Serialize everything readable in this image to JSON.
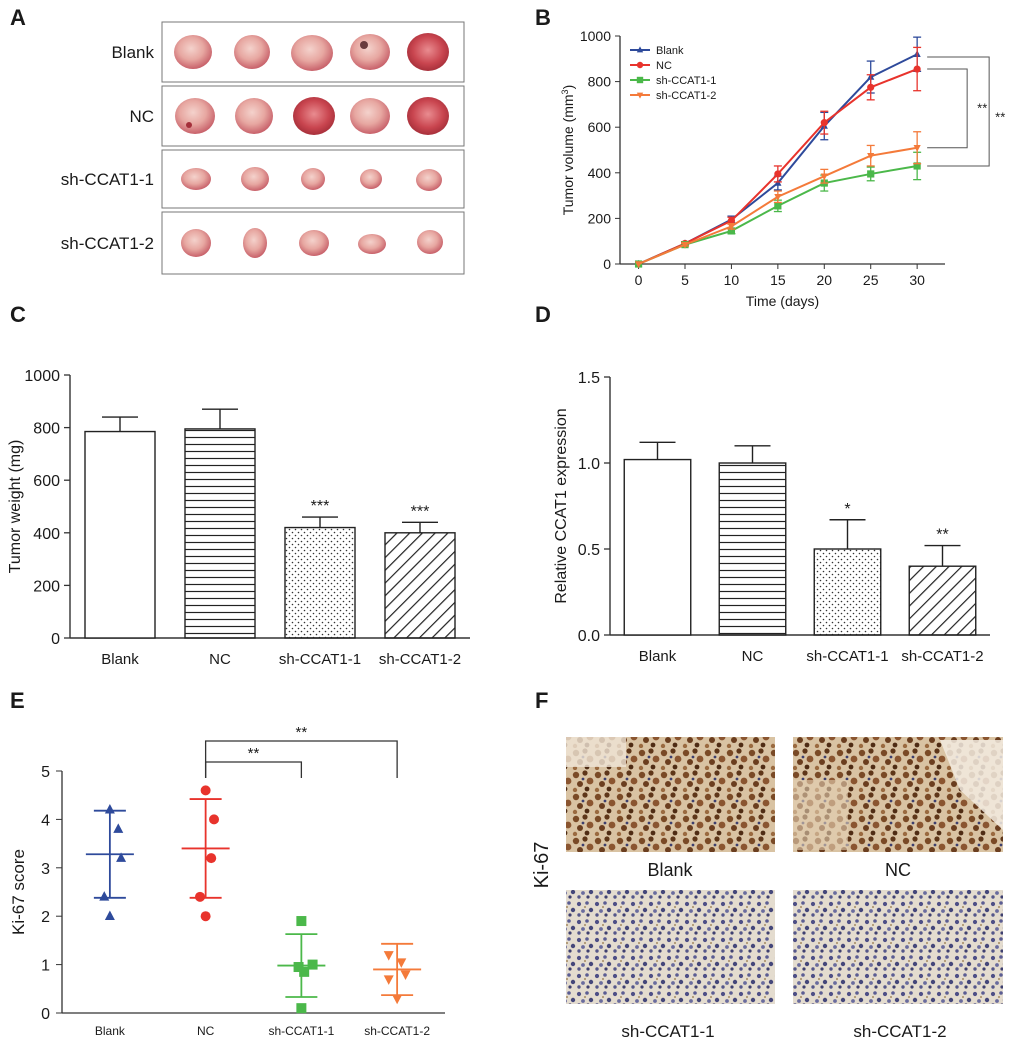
{
  "panels": {
    "A": {
      "letter": "A",
      "rows": [
        "Blank",
        "NC",
        "sh-CCAT1-1",
        "sh-CCAT1-2"
      ]
    },
    "F": {
      "letter": "F",
      "stain": "Ki-67",
      "captions": [
        "Blank",
        "NC",
        "sh-CCAT1-1",
        "sh-CCAT1-2"
      ]
    }
  },
  "chart_data": [
    {
      "id": "B",
      "letter": "B",
      "type": "line",
      "xlabel": "Time (days)",
      "ylabel": "Tumor volume (mm",
      "ylabel_sup": "3",
      "ylabel_close": ")",
      "x": [
        0,
        5,
        10,
        15,
        20,
        25,
        30
      ],
      "xlim": [
        -2,
        33
      ],
      "ylim": [
        0,
        1000
      ],
      "xticks": [
        "0",
        "5",
        "10",
        "15",
        "20",
        "25",
        "30"
      ],
      "yticks": [
        "0",
        "200",
        "400",
        "600",
        "800",
        "1000"
      ],
      "legend_position": "top-left",
      "series": [
        {
          "name": "Blank",
          "color": "#2e4a9b",
          "marker": "triangle-up",
          "values": [
            0,
            90,
            195,
            355,
            605,
            820,
            920
          ],
          "errors": [
            0,
            8,
            15,
            30,
            60,
            70,
            75
          ]
        },
        {
          "name": "NC",
          "color": "#e8332c",
          "marker": "circle",
          "values": [
            0,
            90,
            190,
            395,
            620,
            775,
            855
          ],
          "errors": [
            0,
            8,
            15,
            35,
            50,
            55,
            95
          ]
        },
        {
          "name": "sh-CCAT1-1",
          "color": "#4bb84a",
          "marker": "square",
          "values": [
            0,
            85,
            145,
            255,
            355,
            395,
            430
          ],
          "errors": [
            0,
            6,
            12,
            25,
            35,
            30,
            60
          ]
        },
        {
          "name": "sh-CCAT1-2",
          "color": "#f47a3a",
          "marker": "triangle-down",
          "values": [
            0,
            85,
            165,
            295,
            385,
            475,
            510
          ],
          "errors": [
            0,
            6,
            12,
            25,
            30,
            45,
            70
          ]
        }
      ],
      "annotations": [
        "**",
        "**"
      ]
    },
    {
      "id": "C",
      "letter": "C",
      "type": "bar",
      "ylabel": "Tumor weight (mg)",
      "categories": [
        "Blank",
        "NC",
        "sh-CCAT1-1",
        "sh-CCAT1-2"
      ],
      "values": [
        785,
        795,
        420,
        400
      ],
      "errors": [
        55,
        75,
        40,
        40
      ],
      "significance": [
        "",
        "",
        "***",
        "***"
      ],
      "ylim": [
        0,
        1000
      ],
      "yticks": [
        "0",
        "200",
        "400",
        "600",
        "800",
        "1000"
      ],
      "patterns": [
        "none",
        "hlines",
        "dots",
        "diag"
      ]
    },
    {
      "id": "D",
      "letter": "D",
      "type": "bar",
      "ylabel": "Relative CCAT1 expression",
      "categories": [
        "Blank",
        "NC",
        "sh-CCAT1-1",
        "sh-CCAT1-2"
      ],
      "values": [
        1.02,
        1.0,
        0.5,
        0.4
      ],
      "errors": [
        0.1,
        0.1,
        0.17,
        0.12
      ],
      "significance": [
        "",
        "",
        "*",
        "**"
      ],
      "ylim": [
        0,
        1.5
      ],
      "yticks": [
        "0.0",
        "0.5",
        "1.0",
        "1.5"
      ],
      "patterns": [
        "none",
        "hlines",
        "dots",
        "diag"
      ]
    },
    {
      "id": "E",
      "letter": "E",
      "type": "scatter",
      "ylabel": "Ki-67 score",
      "categories": [
        "Blank",
        "NC",
        "sh-CCAT1-1",
        "sh-CCAT1-2"
      ],
      "ylim": [
        0,
        5
      ],
      "yticks": [
        "0",
        "1",
        "2",
        "3",
        "4",
        "5"
      ],
      "groups": [
        {
          "name": "Blank",
          "color": "#2e4a9b",
          "marker": "triangle-up",
          "points": [
            4.2,
            3.8,
            3.2,
            2.4,
            2.0
          ],
          "offsets": [
            0,
            0.6,
            0.8,
            -0.4,
            0
          ],
          "mean": 3.28,
          "sd": 0.9
        },
        {
          "name": "NC",
          "color": "#e8332c",
          "marker": "circle",
          "points": [
            4.6,
            4.0,
            3.2,
            2.4,
            2.0
          ],
          "offsets": [
            0,
            0.6,
            0.4,
            -0.4,
            0
          ],
          "mean": 3.4,
          "sd": 1.02
        },
        {
          "name": "sh-CCAT1-1",
          "color": "#4bb84a",
          "marker": "square",
          "points": [
            1.9,
            1.0,
            0.95,
            0.85,
            0.1
          ],
          "offsets": [
            0,
            0.8,
            -0.2,
            0.2,
            0
          ],
          "mean": 0.98,
          "sd": 0.65
        },
        {
          "name": "sh-CCAT1-2",
          "color": "#f47a3a",
          "marker": "triangle-down",
          "points": [
            1.2,
            1.05,
            0.8,
            0.7,
            0.3
          ],
          "offsets": [
            -0.6,
            0.3,
            0.6,
            -0.6,
            0
          ],
          "mean": 0.9,
          "sd": 0.53
        }
      ],
      "brackets": [
        {
          "from": 1,
          "to": 2,
          "label": "**"
        },
        {
          "from": 1,
          "to": 3,
          "label": "**"
        }
      ]
    }
  ]
}
